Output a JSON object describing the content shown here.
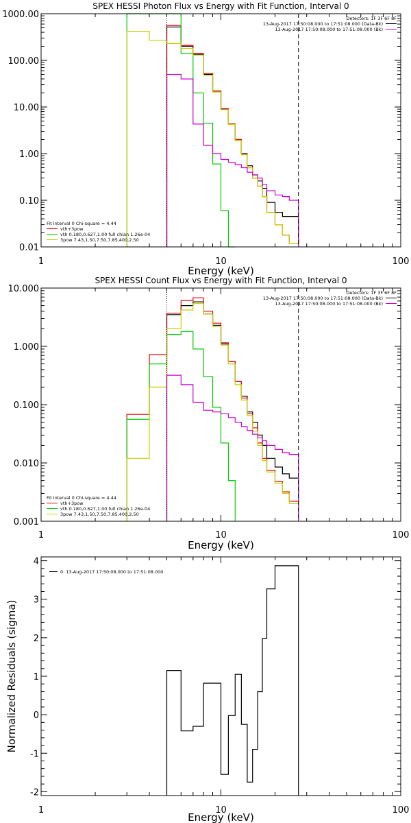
{
  "chart_data": [
    {
      "type": "line",
      "title": "SPEX HESSI Photon Flux vs Energy with Fit Function, Interval 0",
      "xlabel": "Energy (keV)",
      "ylabel": "",
      "xscale": "log",
      "yscale": "log",
      "xlim": [
        1,
        100
      ],
      "ylim": [
        0.01,
        1000
      ],
      "x_ticks": [
        "1",
        "10",
        "100"
      ],
      "y_ticks": [
        "0.01",
        "0.10",
        "1.00",
        "10.00",
        "100.00",
        "1000.00"
      ],
      "legend_top_right": {
        "heading": "Detectors: 1F 3F 6F 8F",
        "entries": [
          {
            "text": "13-Aug-2017 17:50:08.000 to 17:51:08.000 (Data-Bk)",
            "color": "#000000"
          },
          {
            "text": "13-Aug-2017 17:50:08.000 to 17:51:08.000 (Bk)",
            "color": "#cc00cc"
          }
        ]
      },
      "legend_bottom_left": {
        "heading": "Fit Interval 0   Chi-square = 4.44",
        "entries": [
          {
            "text": "vth+3pow",
            "color": "#dd0000"
          },
          {
            "text": "vth 0.180,0.627,1.00  full chian 1.26e-04",
            "color": "#00cc00"
          },
          {
            "text": "3pow 7.43,1.50,7.50,7.85,400,2.50",
            "color": "#cccc00"
          }
        ]
      },
      "markers": [
        {
          "x": 5,
          "style": "dotted",
          "color": "#000000"
        },
        {
          "x": 27,
          "style": "dashed",
          "color": "#000000"
        }
      ],
      "series": [
        {
          "color": "#000000",
          "edges": [
            5,
            6,
            7,
            8,
            9,
            10,
            11,
            12,
            13,
            14,
            15,
            16,
            17,
            18,
            20,
            22,
            24,
            27
          ],
          "values": [
            520,
            200,
            135,
            50,
            22,
            9,
            4.3,
            2.0,
            1.0,
            0.55,
            0.35,
            0.26,
            0.18,
            0.09,
            0.055,
            0.045,
            0.045
          ]
        },
        {
          "color": "#dd0000",
          "edges": [
            5,
            6,
            7,
            8,
            9,
            10,
            11,
            12,
            13,
            14,
            15,
            16,
            17,
            18,
            20,
            22,
            24,
            27
          ],
          "values": [
            560,
            210,
            140,
            52,
            22,
            9.2,
            4.3,
            2.0,
            0.95,
            0.5,
            0.3,
            0.2,
            0.12,
            0.055,
            0.03,
            0.018,
            0.012
          ]
        },
        {
          "color": "#00cc00",
          "edges": [
            3,
            4,
            5,
            6,
            7,
            8,
            9,
            10,
            11,
            12
          ],
          "values": [
            1000,
            1000,
            1000,
            140,
            20,
            4.5,
            0.6,
            0.06,
            0.01
          ]
        },
        {
          "color": "#cccc00",
          "edges": [
            3,
            4,
            5,
            6,
            7,
            8,
            9,
            10,
            11,
            12,
            13,
            14,
            15,
            16,
            17,
            18,
            20,
            22,
            24,
            27
          ],
          "values": [
            420,
            270,
            230,
            180,
            130,
            48,
            21,
            8.8,
            4.2,
            1.9,
            0.95,
            0.5,
            0.3,
            0.2,
            0.12,
            0.055,
            0.03,
            0.018,
            0.012
          ]
        },
        {
          "color": "#cc00cc",
          "edges": [
            5,
            6,
            7,
            8,
            9,
            10,
            11,
            12,
            13,
            14,
            15,
            16,
            17,
            18,
            20,
            22,
            24,
            27
          ],
          "values": [
            50,
            40,
            4.3,
            1.5,
            1.0,
            0.75,
            0.65,
            0.58,
            0.5,
            0.4,
            0.35,
            0.3,
            0.22,
            0.16,
            0.13,
            0.12,
            0.1
          ]
        }
      ]
    },
    {
      "type": "line",
      "title": "SPEX HESSI Count Flux vs Energy with Fit Function, Interval 0",
      "xlabel": "Energy (keV)",
      "ylabel": "",
      "xscale": "log",
      "yscale": "log",
      "xlim": [
        1,
        100
      ],
      "ylim": [
        0.001,
        10
      ],
      "x_ticks": [
        "1",
        "10",
        "100"
      ],
      "y_ticks": [
        "0.001",
        "0.010",
        "0.100",
        "1.000",
        "10.000"
      ],
      "legend_top_right": {
        "heading": "Detectors: 1F 3F 6F 8F",
        "entries": [
          {
            "text": "13-Aug-2017 17:50:08.000 to 17:51:08.000 (Data-Bk)",
            "color": "#000000"
          },
          {
            "text": "13-Aug-2017 17:50:08.000 to 17:51:08.000 (Bk)",
            "color": "#cc00cc"
          }
        ]
      },
      "legend_bottom_left": {
        "heading": "Fit Interval 0   Chi-square = 4.44",
        "entries": [
          {
            "text": "vth+3pow",
            "color": "#dd0000"
          },
          {
            "text": "vth 0.180,0.627,1.00  full chian 1.26e-04",
            "color": "#00cc00"
          },
          {
            "text": "3pow 7.43,1.50,7.50,7.85,400,2.50",
            "color": "#cccc00"
          }
        ]
      },
      "markers": [
        {
          "x": 5,
          "style": "dotted",
          "color": "#000000"
        },
        {
          "x": 27,
          "style": "dashed",
          "color": "#000000"
        }
      ],
      "series": [
        {
          "color": "#000000",
          "edges": [
            5,
            6,
            7,
            8,
            9,
            10,
            11,
            12,
            13,
            14,
            15,
            16,
            17,
            18,
            20,
            22,
            24,
            27
          ],
          "values": [
            3.5,
            5.0,
            5.8,
            3.6,
            2.3,
            1.1,
            0.55,
            0.25,
            0.14,
            0.075,
            0.05,
            0.03,
            0.02,
            0.012,
            0.0085,
            0.0065,
            0.0055
          ]
        },
        {
          "color": "#dd0000",
          "edges": [
            3,
            4,
            5,
            6,
            7,
            8,
            9,
            10,
            11,
            12,
            13,
            14,
            15,
            16,
            17,
            18,
            20,
            22,
            24,
            27
          ],
          "values": [
            0.068,
            0.72,
            3.7,
            6.1,
            6.8,
            4.0,
            2.5,
            1.15,
            0.55,
            0.25,
            0.13,
            0.07,
            0.04,
            0.022,
            0.012,
            0.0075,
            0.0048,
            0.0032,
            0.0022
          ]
        },
        {
          "color": "#00cc00",
          "edges": [
            3,
            4,
            5,
            6,
            7,
            8,
            9,
            10,
            11,
            12
          ],
          "values": [
            0.056,
            0.5,
            1.6,
            1.8,
            0.9,
            0.3,
            0.09,
            0.022,
            0.005
          ]
        },
        {
          "color": "#cccc00",
          "edges": [
            3,
            4,
            5,
            6,
            7,
            8,
            9,
            10,
            11,
            12,
            13,
            14,
            15,
            16,
            17,
            18,
            20,
            22,
            24,
            27
          ],
          "values": [
            0.012,
            0.2,
            2.0,
            4.2,
            5.4,
            3.6,
            2.2,
            1.05,
            0.5,
            0.22,
            0.12,
            0.065,
            0.035,
            0.02,
            0.011,
            0.007,
            0.0045,
            0.003,
            0.002
          ]
        },
        {
          "color": "#cc00cc",
          "edges": [
            5,
            6,
            7,
            8,
            9,
            10,
            11,
            12,
            13,
            14,
            15,
            16,
            17,
            18,
            20,
            22,
            24,
            27
          ],
          "values": [
            0.32,
            0.22,
            0.11,
            0.08,
            0.075,
            0.07,
            0.06,
            0.05,
            0.042,
            0.036,
            0.031,
            0.027,
            0.024,
            0.02,
            0.017,
            0.015,
            0.014
          ]
        }
      ]
    },
    {
      "type": "line",
      "title": "",
      "xlabel": "Energy (keV)",
      "ylabel": "Normalized Residuals (sigma)",
      "xscale": "log",
      "yscale": "linear",
      "xlim": [
        1,
        100
      ],
      "ylim": [
        -2.1,
        4.1
      ],
      "x_ticks": [
        "1",
        "10",
        "100"
      ],
      "y_ticks": [
        "-2",
        "-1",
        "0",
        "1",
        "2",
        "3",
        "4"
      ],
      "legend_top_left": {
        "entries": [
          {
            "text": "0. 13-Aug-2017 17:50:08.000 to 17:51:08.000",
            "color": "#000000"
          }
        ]
      },
      "series": [
        {
          "color": "#000000",
          "edges": [
            5,
            6,
            7,
            8,
            9,
            10,
            11,
            12,
            13,
            14,
            15,
            16,
            17,
            18,
            20,
            22,
            24,
            27
          ],
          "values": [
            1.15,
            -0.42,
            -0.3,
            0.82,
            0.82,
            -1.55,
            -0.02,
            1.05,
            -0.25,
            -1.75,
            -0.9,
            0.6,
            1.98,
            3.27,
            3.87,
            3.87,
            3.87
          ]
        }
      ]
    }
  ]
}
